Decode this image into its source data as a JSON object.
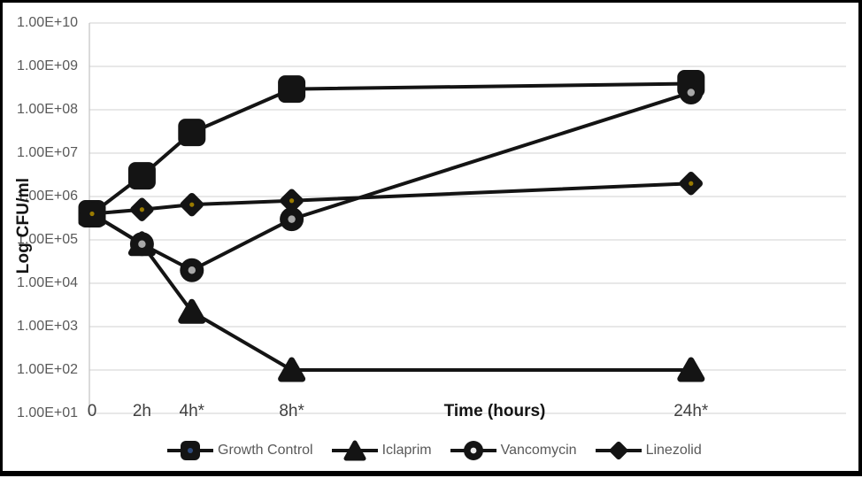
{
  "figure": {
    "background": "#ffffff",
    "border_color": "#000000"
  },
  "chart_data": {
    "type": "line",
    "title": "",
    "xlabel": "Time (hours)",
    "ylabel": "Log CFU/ml",
    "y_scale": "log10",
    "ylim": [
      10.0,
      10000000000.0
    ],
    "y_ticks": [
      "1.00E+10",
      "1.00E+09",
      "1.00E+08",
      "1.00E+07",
      "1.00E+06",
      "1.00E+05",
      "1.00E+04",
      "1.00E+03",
      "1.00E+02",
      "1.00E+01"
    ],
    "categories": [
      "0",
      "2h",
      "4h*",
      "8h*",
      "24h*"
    ],
    "x_hours": [
      0,
      2,
      4,
      8,
      24
    ],
    "x_axis_linear_in_hours": true,
    "grid": "horizontal-only",
    "legend_position": "bottom",
    "series": [
      {
        "name": "Growth Control",
        "marker": "square",
        "values": [
          400000.0,
          3000000.0,
          30000000.0,
          300000000.0,
          400000000.0
        ]
      },
      {
        "name": "Iclaprim",
        "marker": "triangle",
        "values": [
          400000.0,
          80000.0,
          2200.0,
          100.0,
          100.0
        ]
      },
      {
        "name": "Vancomycin",
        "marker": "circle-dot",
        "values": [
          400000.0,
          80000.0,
          20000.0,
          300000.0,
          250000000.0
        ]
      },
      {
        "name": "Linezolid",
        "marker": "diamond",
        "values": [
          400000.0,
          500000.0,
          650000.0,
          800000.0,
          2000000.0
        ]
      }
    ]
  },
  "colors": {
    "series_line": "#141414",
    "gridline": "#d9d9d9",
    "axis_line": "#c6c6c6",
    "y_tick_text": "#595959",
    "x_tick_text": "#404040",
    "axis_title_text": "#141414",
    "legend_text": "#595959",
    "circle_marker_dot": "#a8a8a8",
    "diamond_marker_dot": "#9a7b00",
    "legend_square_dot": "#2e4a7a"
  }
}
